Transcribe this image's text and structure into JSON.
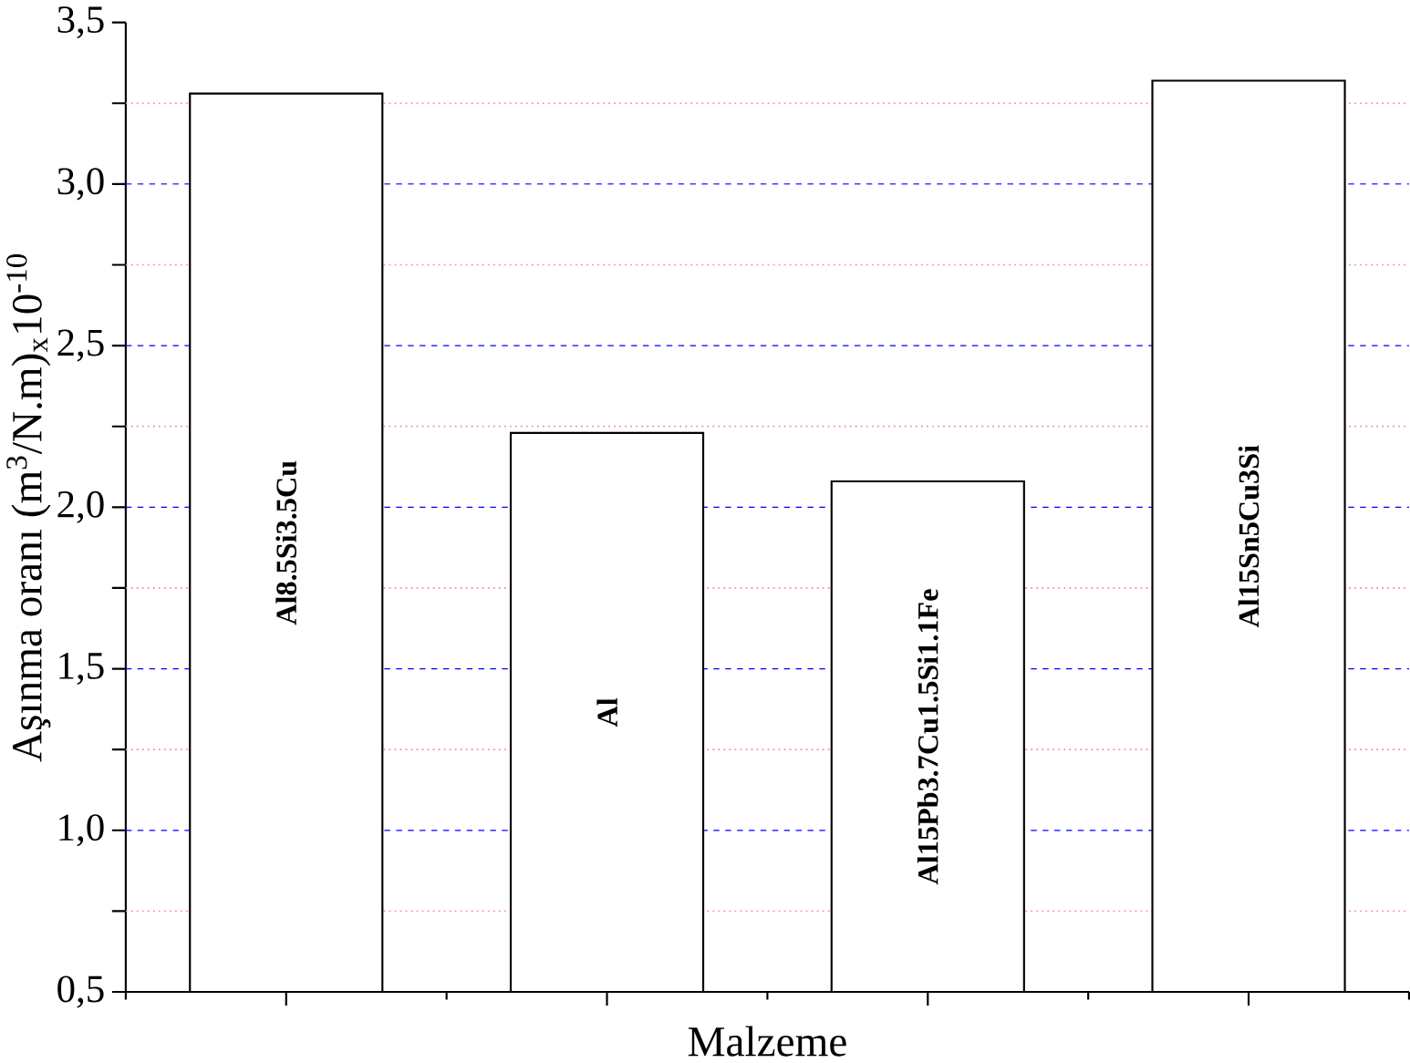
{
  "chart_data": {
    "type": "bar",
    "xlabel": "Malzeme",
    "ylabel": "Aşınma oranı (m$^{3}$/N.m)$_{x}$10$^{-10}$",
    "categories": [
      "Al8.5Si3.5Cu",
      "Al",
      "Al15Pb3.7Cu1.5Si1.1Fe",
      "Al15Sn5Cu3Si"
    ],
    "values": [
      3.28,
      2.23,
      2.08,
      3.32
    ],
    "color": "#000000",
    "ylim": [
      0.5,
      3.5
    ],
    "yticks": [
      {
        "value": 0.5,
        "label": "0,5"
      },
      {
        "value": 0.75,
        "label": null
      },
      {
        "value": 1.0,
        "label": "1,0"
      },
      {
        "value": 1.25,
        "label": null
      },
      {
        "value": 1.5,
        "label": "1,5"
      },
      {
        "value": 1.75,
        "label": null
      },
      {
        "value": 2.0,
        "label": "2,0"
      },
      {
        "value": 2.25,
        "label": null
      },
      {
        "value": 2.5,
        "label": "2,5"
      },
      {
        "value": 2.75,
        "label": null
      },
      {
        "value": 3.0,
        "label": "3,0"
      },
      {
        "value": 3.25,
        "label": null
      },
      {
        "value": 3.5,
        "label": "3,5"
      }
    ],
    "grid": "y"
  }
}
